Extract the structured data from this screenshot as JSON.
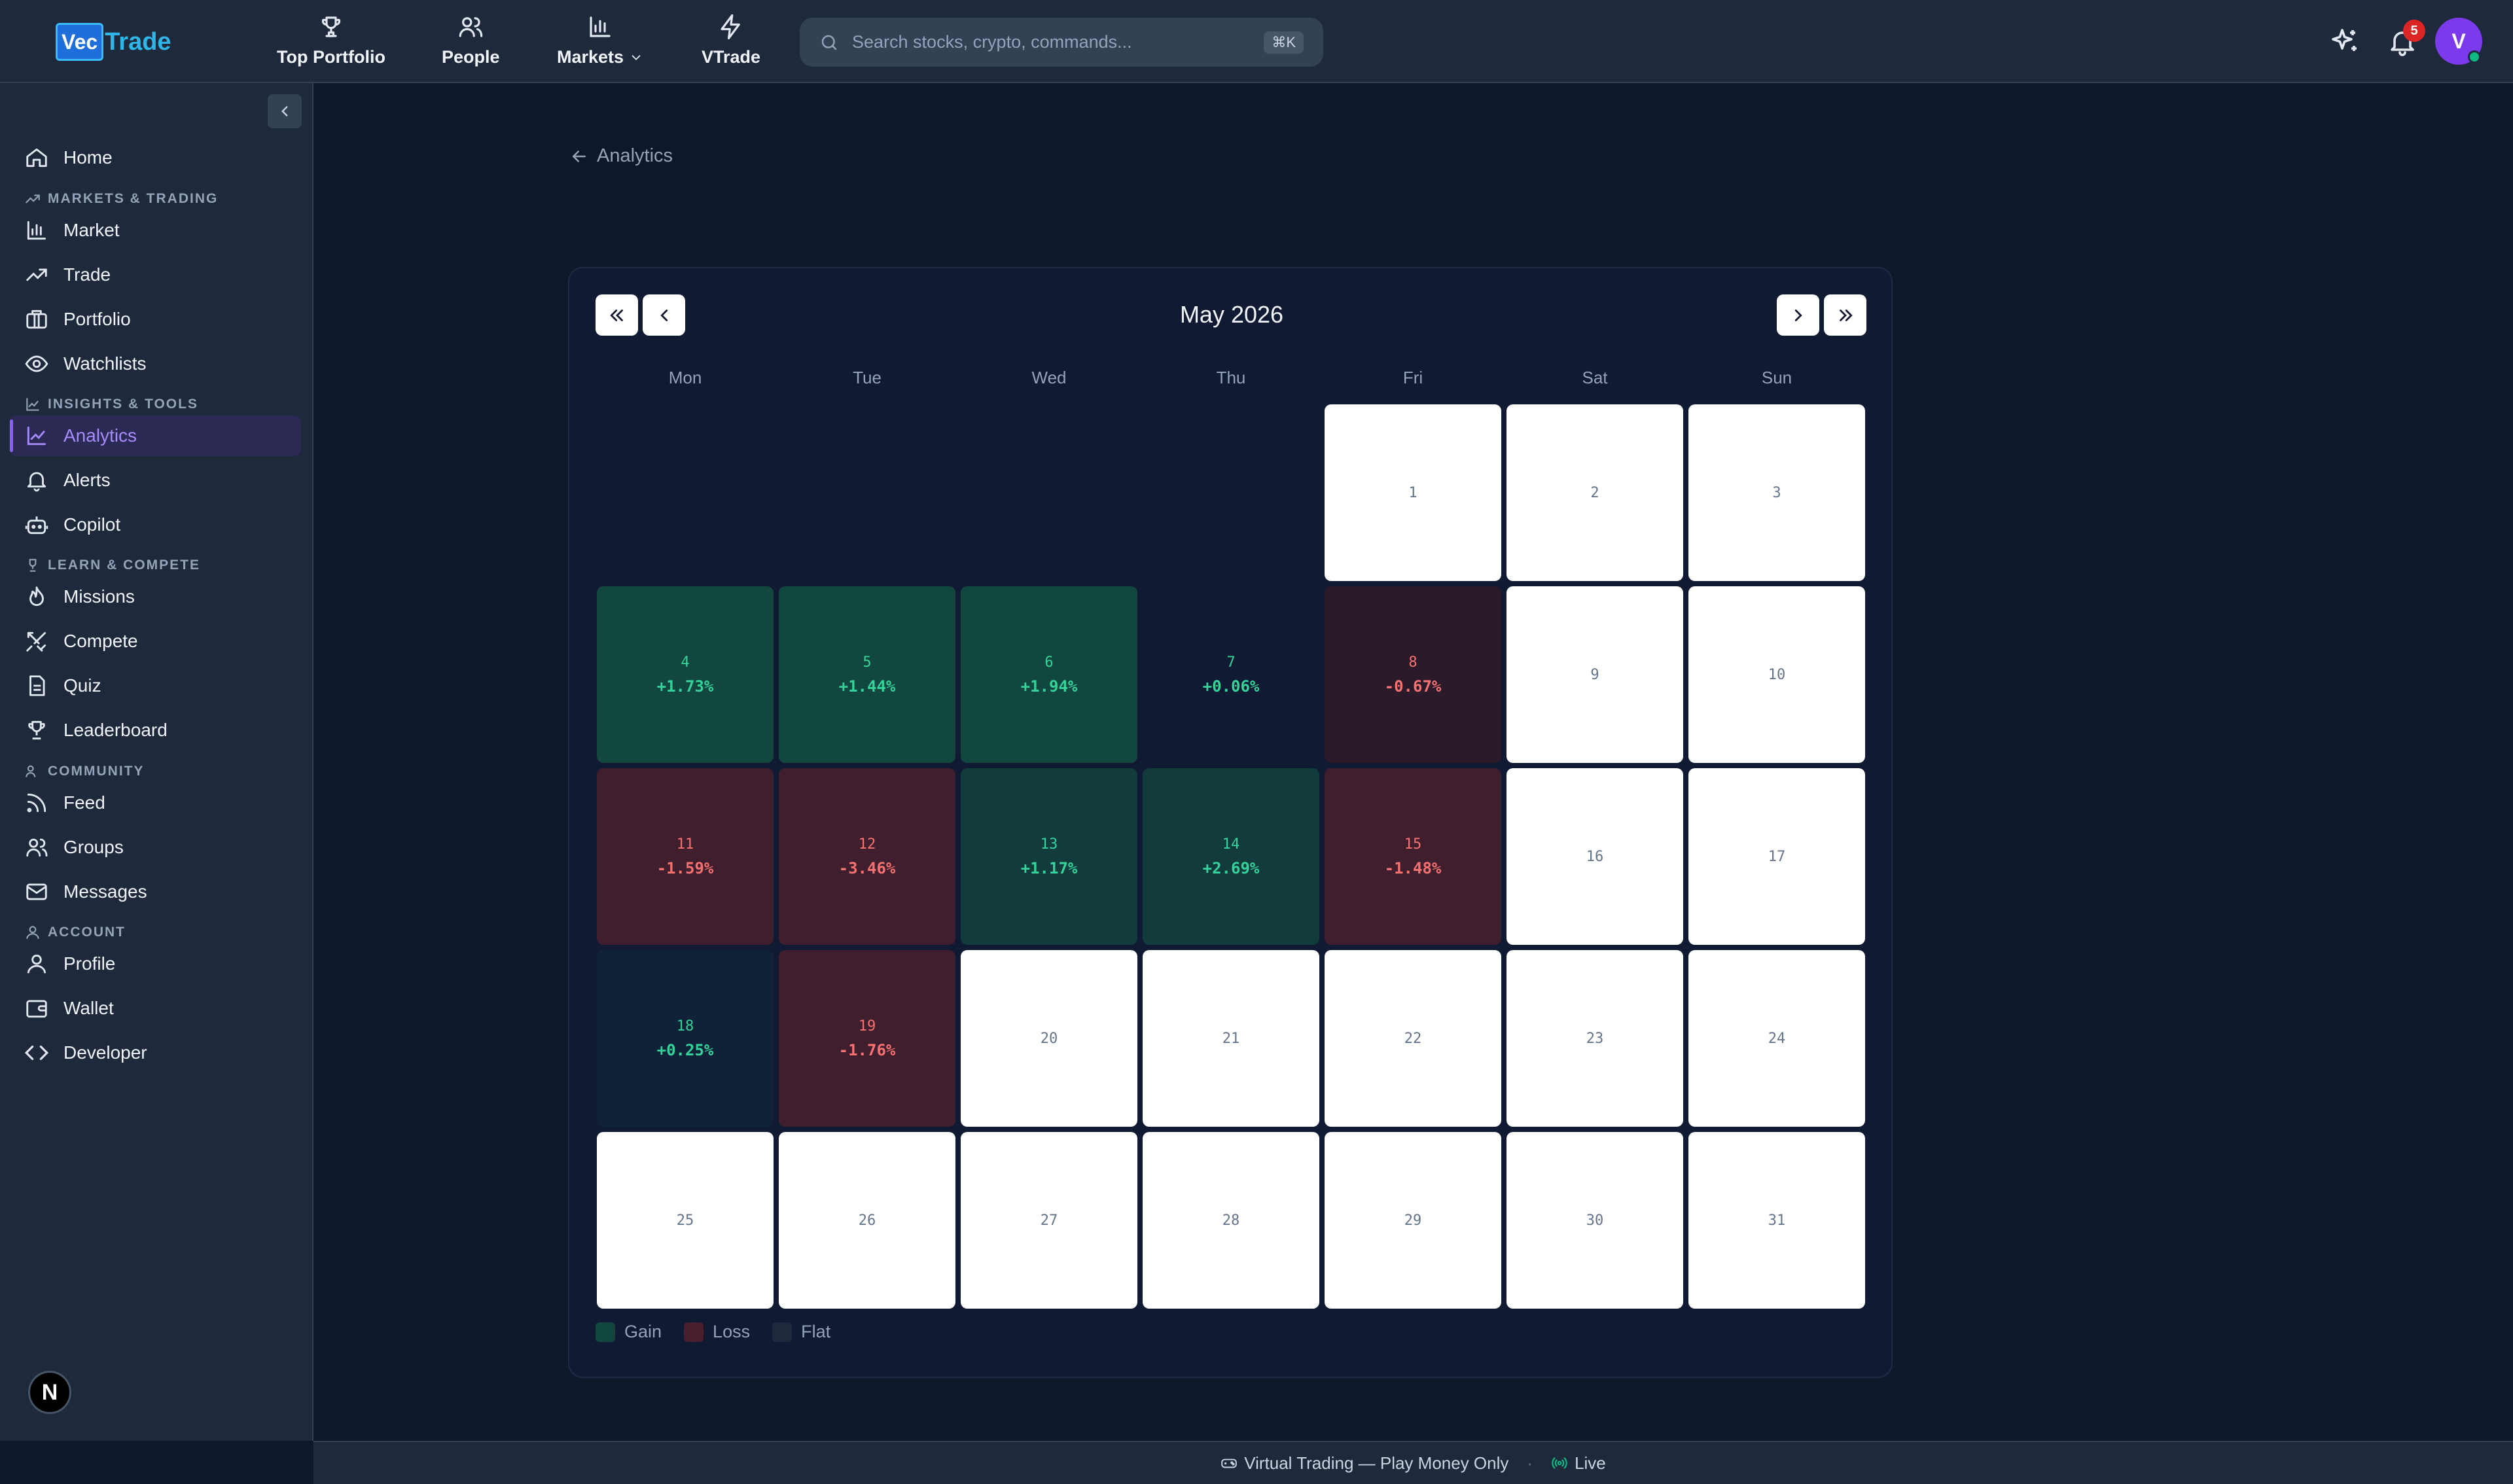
{
  "app": {
    "logo_box": "Vec",
    "logo_text": "Trade"
  },
  "topnav": [
    {
      "label": "Top Portfolio",
      "icon": "trophy-icon"
    },
    {
      "label": "People",
      "icon": "users-icon"
    },
    {
      "label": "Markets",
      "icon": "bar-chart-icon",
      "has_dropdown": true
    },
    {
      "label": "VTrade",
      "icon": "lightning-icon"
    }
  ],
  "search": {
    "placeholder": "Search stocks, crypto, commands...",
    "shortcut": "⌘K"
  },
  "notifications": {
    "count": "5"
  },
  "user": {
    "initial": "V"
  },
  "sidebar": {
    "home": "Home",
    "sections": {
      "markets": "MARKETS & TRADING",
      "insights": "INSIGHTS & TOOLS",
      "learn": "LEARN & COMPETE",
      "community": "COMMUNITY",
      "account": "ACCOUNT"
    },
    "items": {
      "market": "Market",
      "trade": "Trade",
      "portfolio": "Portfolio",
      "watchlists": "Watchlists",
      "analytics": "Analytics",
      "alerts": "Alerts",
      "copilot": "Copilot",
      "missions": "Missions",
      "compete": "Compete",
      "quiz": "Quiz",
      "leaderboard": "Leaderboard",
      "feed": "Feed",
      "groups": "Groups",
      "messages": "Messages",
      "profile": "Profile",
      "wallet": "Wallet",
      "developer": "Developer"
    },
    "bottom_badge": "N"
  },
  "breadcrumb": {
    "label": "Analytics"
  },
  "calendar": {
    "title": "May 2026",
    "weekdays": [
      "Mon",
      "Tue",
      "Wed",
      "Thu",
      "Fri",
      "Sat",
      "Sun"
    ],
    "first_weekday_index": 4,
    "days": [
      {
        "day": "1",
        "pct": "",
        "status": "none"
      },
      {
        "day": "2",
        "pct": "",
        "status": "none"
      },
      {
        "day": "3",
        "pct": "",
        "status": "none"
      },
      {
        "day": "4",
        "pct": "+1.73%",
        "status": "gain"
      },
      {
        "day": "5",
        "pct": "+1.44%",
        "status": "gain"
      },
      {
        "day": "6",
        "pct": "+1.94%",
        "status": "gain"
      },
      {
        "day": "7",
        "pct": "+0.06%",
        "status": "flat-gain"
      },
      {
        "day": "8",
        "pct": "-0.67%",
        "status": "loss-light"
      },
      {
        "day": "9",
        "pct": "",
        "status": "none"
      },
      {
        "day": "10",
        "pct": "",
        "status": "none"
      },
      {
        "day": "11",
        "pct": "-1.59%",
        "status": "loss"
      },
      {
        "day": "12",
        "pct": "-3.46%",
        "status": "loss"
      },
      {
        "day": "13",
        "pct": "+1.17%",
        "status": "gain-mid"
      },
      {
        "day": "14",
        "pct": "+2.69%",
        "status": "gain-mid"
      },
      {
        "day": "15",
        "pct": "-1.48%",
        "status": "loss"
      },
      {
        "day": "16",
        "pct": "",
        "status": "none"
      },
      {
        "day": "17",
        "pct": "",
        "status": "none"
      },
      {
        "day": "18",
        "pct": "+0.25%",
        "status": "gain-light"
      },
      {
        "day": "19",
        "pct": "-1.76%",
        "status": "loss"
      },
      {
        "day": "20",
        "pct": "",
        "status": "none"
      },
      {
        "day": "21",
        "pct": "",
        "status": "none"
      },
      {
        "day": "22",
        "pct": "",
        "status": "none"
      },
      {
        "day": "23",
        "pct": "",
        "status": "none"
      },
      {
        "day": "24",
        "pct": "",
        "status": "none"
      },
      {
        "day": "25",
        "pct": "",
        "status": "none"
      },
      {
        "day": "26",
        "pct": "",
        "status": "none"
      },
      {
        "day": "27",
        "pct": "",
        "status": "none"
      },
      {
        "day": "28",
        "pct": "",
        "status": "none"
      },
      {
        "day": "29",
        "pct": "",
        "status": "none"
      },
      {
        "day": "30",
        "pct": "",
        "status": "none"
      },
      {
        "day": "31",
        "pct": "",
        "status": "none"
      }
    ],
    "status_colors": {
      "gain": "#12473f",
      "gain-mid": "#123b3b",
      "gain-light": "#0f2238",
      "flat-gain": "#111a33",
      "loss": "#3f1f2e",
      "loss-light": "#2a1a2a"
    },
    "legend": [
      {
        "label": "Gain",
        "color": "#12473f"
      },
      {
        "label": "Loss",
        "color": "#4a1f2e"
      },
      {
        "label": "Flat",
        "color": "#1e293b"
      }
    ]
  },
  "footer": {
    "text": "Virtual Trading — Play Money Only",
    "separator": "·",
    "live": "Live"
  }
}
